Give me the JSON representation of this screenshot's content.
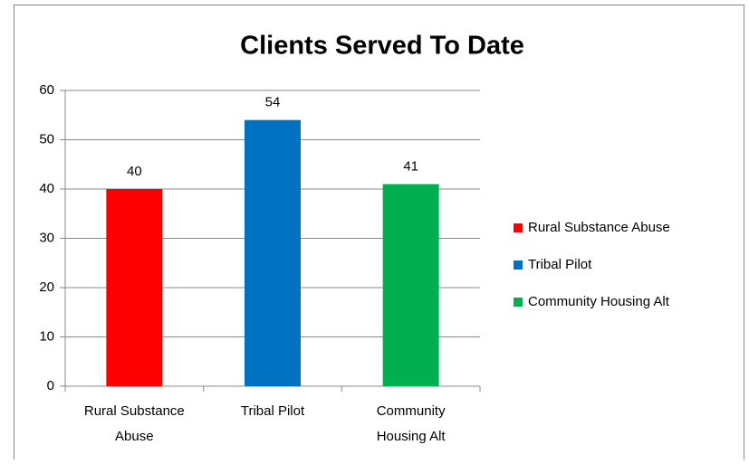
{
  "chart_data": {
    "type": "bar",
    "title": "Clients Served To Date",
    "categories": [
      "Rural Substance Abuse",
      "Tribal Pilot",
      "Community Housing Alt"
    ],
    "values": [
      40,
      54,
      41
    ],
    "colors": [
      "#ff0000",
      "#0070c0",
      "#00b050"
    ],
    "ylim": [
      0,
      60
    ],
    "yticks": [
      0,
      10,
      20,
      30,
      40,
      50,
      60
    ],
    "grid": true,
    "legend": "right"
  }
}
